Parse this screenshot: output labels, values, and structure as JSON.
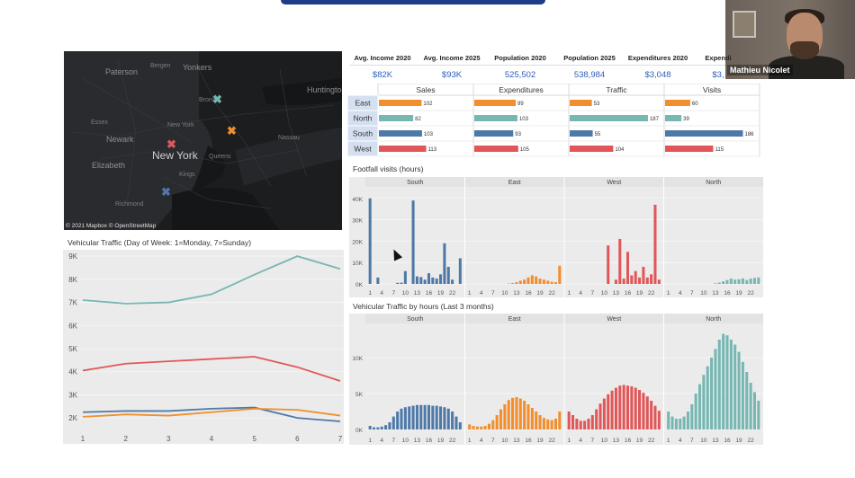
{
  "participant": {
    "name": "Mathieu Nicolet"
  },
  "map": {
    "labels": [
      "Paterson",
      "Bergen",
      "Yonkers",
      "Huntington",
      "Essex",
      "Bronx",
      "New York",
      "Newark",
      "New York",
      "Nassau",
      "Elizabeth",
      "Queens",
      "Kings",
      "Richmond"
    ],
    "credit": "© 2021 Mapbox © OpenStreetMap",
    "markers": [
      {
        "name": "east",
        "symbol": "✖",
        "color": "#76b7b2"
      },
      {
        "name": "north",
        "symbol": "✖",
        "color": "#f28e2b"
      },
      {
        "name": "west",
        "symbol": "✖",
        "color": "#e15759"
      },
      {
        "name": "south",
        "symbol": "✖",
        "color": "#4e79a7"
      }
    ]
  },
  "kpis": [
    {
      "label": "Avg. Income 2020",
      "value": "$82K"
    },
    {
      "label": "Avg. Income 2025",
      "value": "$93K"
    },
    {
      "label": "Population 2020",
      "value": "525,502"
    },
    {
      "label": "Population 2025",
      "value": "538,984"
    },
    {
      "label": "Expenditures 2020",
      "value": "$3,048"
    },
    {
      "label": "Expendi",
      "value": "$3,"
    }
  ],
  "colors": {
    "South": "#4e79a7",
    "East": "#f28e2b",
    "West": "#e15759",
    "North": "#76b7b2",
    "grid": "#e0e0e0",
    "panel": "#ebebeb"
  },
  "region_bars": {
    "metrics": [
      "Sales",
      "Expenditures",
      "Traffic",
      "Visits"
    ],
    "regions": [
      "East",
      "North",
      "South",
      "West"
    ],
    "values": {
      "Sales": [
        102,
        82,
        103,
        113
      ],
      "Expenditures": [
        99,
        103,
        93,
        105
      ],
      "Traffic": [
        53,
        187,
        55,
        104
      ],
      "Visits": [
        60,
        39,
        186,
        115
      ]
    }
  },
  "chart_data": [
    {
      "type": "bar",
      "title": "Footfall visits (hours)",
      "panels": [
        "South",
        "East",
        "West",
        "North"
      ],
      "x": [
        1,
        2,
        3,
        4,
        5,
        6,
        7,
        8,
        9,
        10,
        11,
        12,
        13,
        14,
        15,
        16,
        17,
        18,
        19,
        20,
        21,
        22,
        23,
        24
      ],
      "tick_labels": [
        "1",
        "4",
        "7",
        "10",
        "13",
        "16",
        "19",
        "22"
      ],
      "y_ticks": [
        "40K",
        "30K",
        "20K",
        "10K",
        "0K"
      ],
      "ylim": [
        0,
        42000
      ],
      "series": [
        {
          "name": "South",
          "values": [
            40000,
            0,
            3000,
            0,
            0,
            0,
            0,
            500,
            600,
            6000,
            0,
            39000,
            3500,
            3200,
            2000,
            5000,
            3000,
            2500,
            4500,
            19000,
            8000,
            2000,
            0,
            12000
          ]
        },
        {
          "name": "East",
          "values": [
            0,
            0,
            0,
            0,
            0,
            0,
            0,
            0,
            0,
            0,
            200,
            400,
            800,
            1500,
            2000,
            3000,
            4000,
            3500,
            2500,
            2000,
            1500,
            1000,
            800,
            8500
          ]
        },
        {
          "name": "West",
          "values": [
            0,
            0,
            0,
            0,
            0,
            0,
            0,
            0,
            0,
            0,
            18000,
            0,
            2000,
            21000,
            2500,
            15000,
            4000,
            6000,
            3000,
            8000,
            3000,
            4500,
            37000,
            2000
          ]
        },
        {
          "name": "North",
          "values": [
            0,
            0,
            0,
            0,
            0,
            0,
            0,
            0,
            0,
            0,
            0,
            0,
            300,
            600,
            1200,
            1800,
            2500,
            2000,
            2200,
            2600,
            1800,
            2500,
            2800,
            3000
          ]
        }
      ]
    },
    {
      "type": "bar",
      "title": "Vehicular Traffic by hours (Last 3 months)",
      "panels": [
        "South",
        "East",
        "West",
        "North"
      ],
      "x": [
        1,
        2,
        3,
        4,
        5,
        6,
        7,
        8,
        9,
        10,
        11,
        12,
        13,
        14,
        15,
        16,
        17,
        18,
        19,
        20,
        21,
        22,
        23,
        24
      ],
      "tick_labels": [
        "1",
        "4",
        "7",
        "10",
        "13",
        "16",
        "19",
        "22"
      ],
      "y_ticks": [
        "10K",
        "5K",
        "0K"
      ],
      "ylim": [
        0,
        14000
      ],
      "series": [
        {
          "name": "South",
          "values": [
            500,
            300,
            300,
            400,
            600,
            1000,
            1800,
            2500,
            2900,
            3100,
            3200,
            3300,
            3400,
            3400,
            3400,
            3400,
            3300,
            3300,
            3200,
            3100,
            2900,
            2500,
            1800,
            1000
          ]
        },
        {
          "name": "East",
          "values": [
            700,
            500,
            400,
            400,
            500,
            800,
            1300,
            2000,
            2800,
            3500,
            4100,
            4400,
            4500,
            4300,
            4000,
            3500,
            3000,
            2500,
            2000,
            1600,
            1400,
            1300,
            1500,
            2500
          ]
        },
        {
          "name": "West",
          "values": [
            2500,
            2000,
            1500,
            1200,
            1200,
            1500,
            2000,
            2800,
            3600,
            4300,
            4900,
            5400,
            5800,
            6100,
            6200,
            6100,
            6000,
            5800,
            5500,
            5100,
            4600,
            4000,
            3300,
            2600
          ]
        },
        {
          "name": "North",
          "values": [
            2500,
            1800,
            1500,
            1500,
            1800,
            2500,
            3500,
            5000,
            6300,
            7600,
            8800,
            10000,
            11200,
            12500,
            13300,
            13100,
            12500,
            11800,
            10800,
            9400,
            8000,
            6500,
            5200,
            4000
          ]
        }
      ]
    },
    {
      "type": "line",
      "title": "Vehicular Traffic (Day of Week: 1=Monday,  7=Sunday)",
      "x": [
        1,
        2,
        3,
        4,
        5,
        6,
        7
      ],
      "y_ticks": [
        "9K",
        "8K",
        "7K",
        "6K",
        "5K",
        "4K",
        "3K",
        "2K"
      ],
      "ylim": [
        1500,
        9200
      ],
      "series": [
        {
          "name": "North",
          "values": [
            7100,
            6950,
            7000,
            7350,
            8200,
            9000,
            8450
          ]
        },
        {
          "name": "West",
          "values": [
            4050,
            4350,
            4450,
            4550,
            4650,
            4200,
            3600
          ]
        },
        {
          "name": "South",
          "values": [
            2250,
            2300,
            2300,
            2400,
            2450,
            2000,
            1850
          ]
        },
        {
          "name": "East",
          "values": [
            2050,
            2150,
            2100,
            2250,
            2400,
            2350,
            2100
          ]
        }
      ]
    }
  ]
}
